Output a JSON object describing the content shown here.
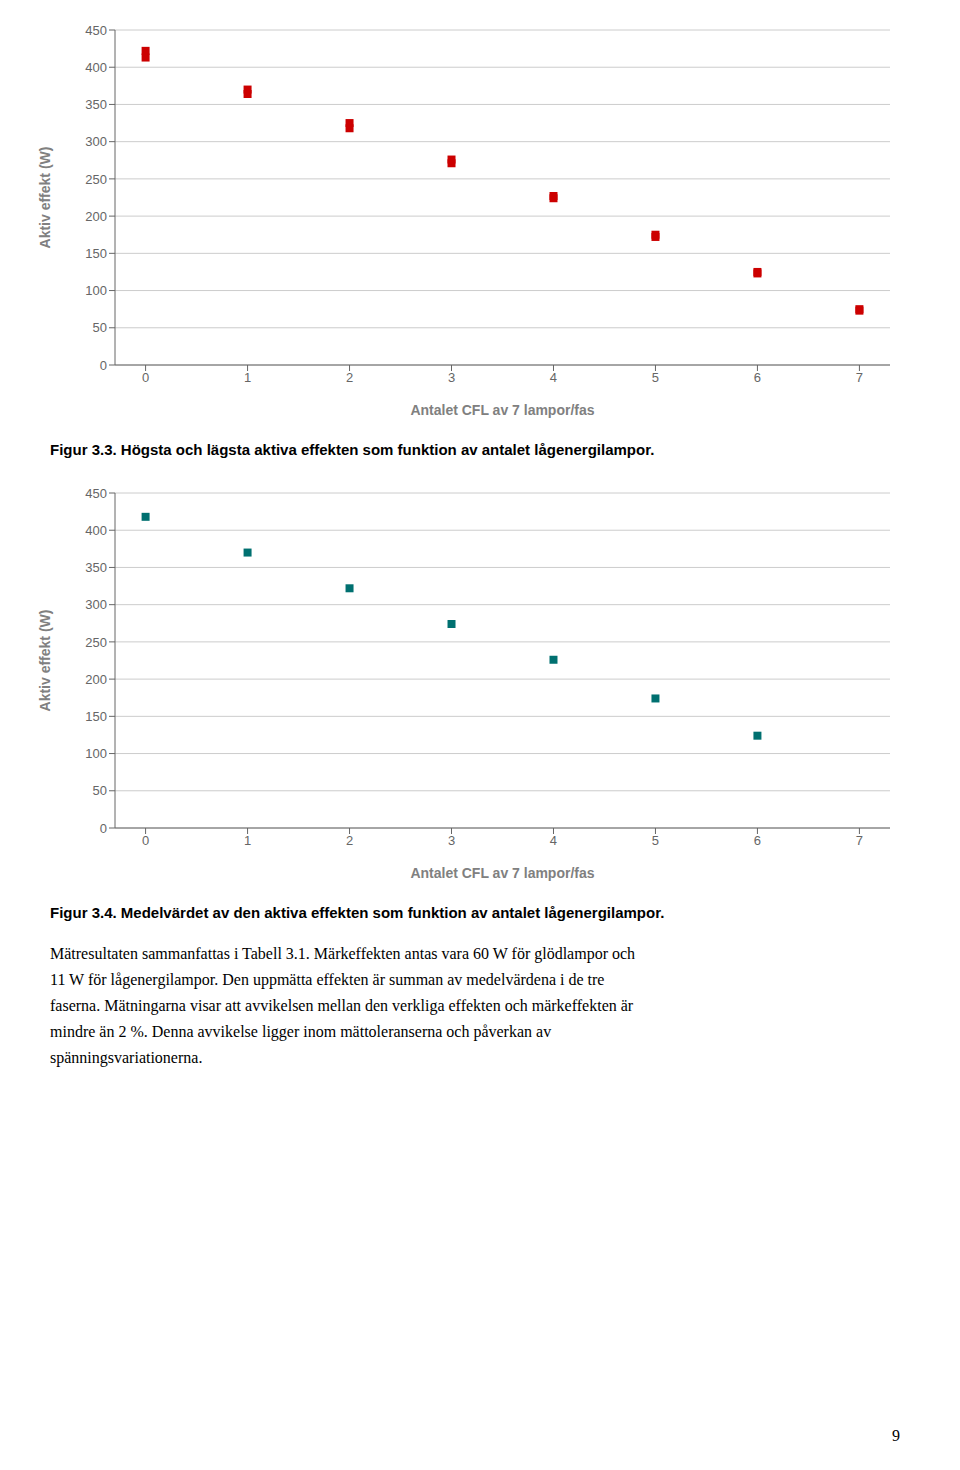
{
  "chart_data": [
    {
      "type": "scatter",
      "title": "Figur 3.3. Högsta och lägsta aktiva effekten som funktion av antalet lågenergilampor.",
      "x_label": "Antalet CFL av 7 lampor/fas",
      "y_label": "Aktiv effekt (W)",
      "x": [
        0,
        1,
        2,
        3,
        4,
        5,
        6,
        7
      ],
      "series": [
        {
          "color": "#cc0000",
          "marker": "square",
          "values": [
            422,
            370,
            325,
            276,
            227,
            175,
            125,
            75
          ]
        },
        {
          "color": "#cc0000",
          "marker": "square",
          "values": [
            413,
            364,
            318,
            271,
            224,
            172,
            123,
            73
          ]
        }
      ],
      "xlim": [
        -0.3,
        7.3
      ],
      "ylim": [
        0,
        450
      ],
      "xticks": [
        0,
        1,
        2,
        3,
        4,
        5,
        6,
        7
      ],
      "yticks": [
        0,
        50,
        100,
        150,
        200,
        250,
        300,
        350,
        400,
        450
      ],
      "grid": "y"
    },
    {
      "type": "scatter",
      "title": "Figur 3.4. Medelvärdet av den aktiva effekten som funktion av antalet lågenergilampor.",
      "x_label": "Antalet CFL av 7 lampor/fas",
      "y_label": "Aktiv effekt (W)",
      "x": [
        0,
        1,
        2,
        3,
        4,
        5,
        6
      ],
      "series": [
        {
          "color": "#007070",
          "marker": "square",
          "values": [
            418,
            370,
            322,
            274,
            226,
            174,
            124
          ]
        }
      ],
      "xlim": [
        -0.3,
        7.3
      ],
      "ylim": [
        0,
        450
      ],
      "xticks": [
        0,
        1,
        2,
        3,
        4,
        5,
        6,
        7
      ],
      "yticks": [
        0,
        50,
        100,
        150,
        200,
        250,
        300,
        350,
        400,
        450
      ],
      "grid": "y",
      "annotations": [
        "Mätresultaten sammanfattas i Tabell 3.1. Märkeffekten antas vara 60 W för glödlampor och",
        "11 W för lågenergilampor. Den uppmätta effekten är summan av medelvärdena i de tre",
        "faserna. Mätningarna visar att avvikelsen mellan den verkliga effekten och märkeffekten är",
        "mindre än 2 %. Denna avvikelse ligger inom mättoleranserna och påverkan av",
        "spänningsvariationerna.",
        "9"
      ]
    }
  ]
}
